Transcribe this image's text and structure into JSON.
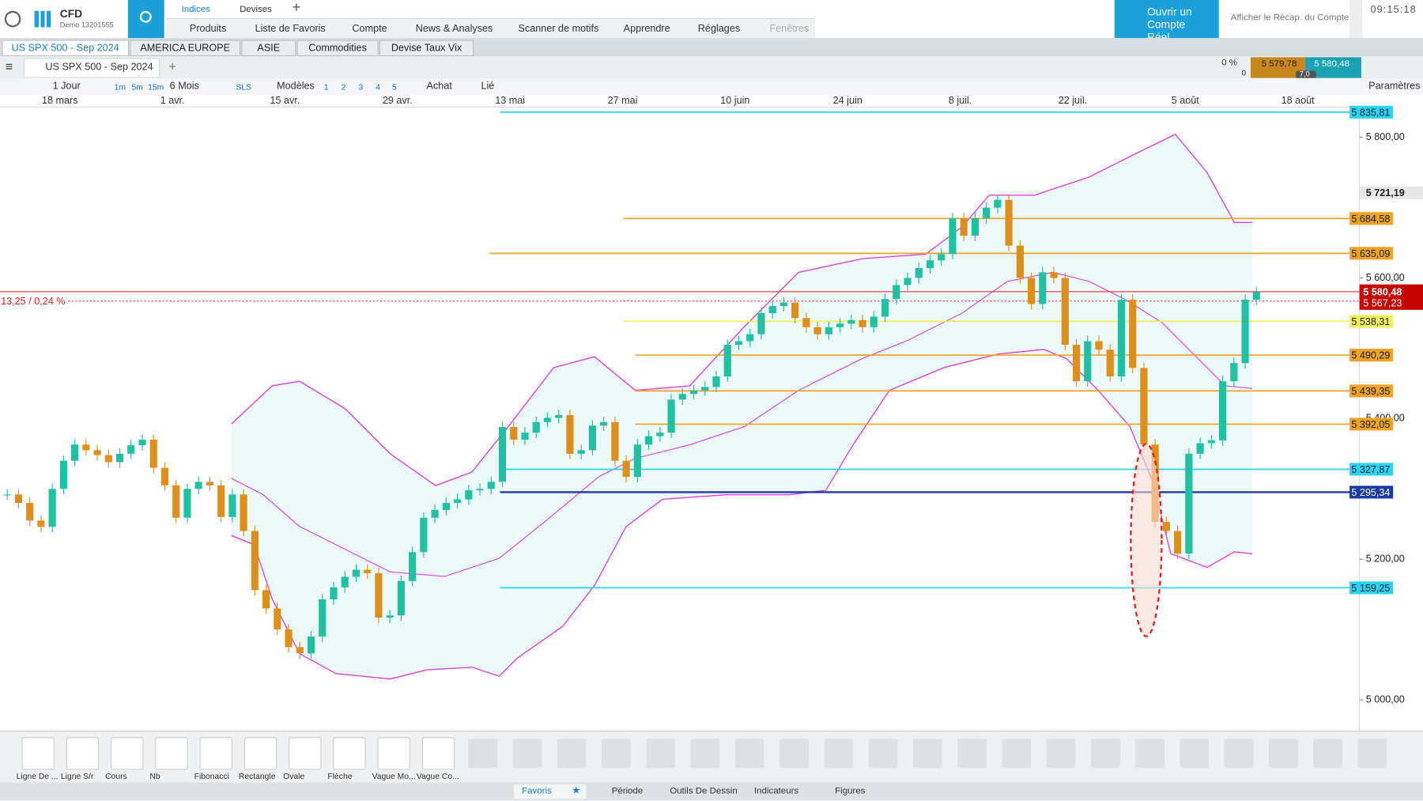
{
  "header": {
    "brand": "CFD",
    "account": "Demo 13201555",
    "tabs": [
      "Indices",
      "Devises"
    ],
    "menu": [
      "Produits",
      "Liste de Favoris",
      "Compte",
      "News & Analyses",
      "Scanner de motifs",
      "Apprendre",
      "Réglages",
      "Fenêtres"
    ],
    "cta": "Ouvrir un Compte Réel",
    "summary": "Afficher le Récap. du Compte",
    "time": "09:15:18"
  },
  "watchlists": [
    "US SPX 500 - Sep 2024",
    "AMERICA EUROPE",
    "ASIE",
    "Commodities",
    "Devise Taux Vix"
  ],
  "chart_toolbar": {
    "instrument": "US SPX 500 - Sep 2024",
    "change_pct": "0 %",
    "change": "0",
    "bid": "5 579,78",
    "spread": "7,0",
    "ask": "5 580,48",
    "interval": "1 Jour",
    "intervals": [
      "1m",
      "5m",
      "15m"
    ],
    "range": "6 Mois",
    "sls": "SLS",
    "templates": "Modèles",
    "layouts": [
      "1",
      "2",
      "3",
      "4",
      "5"
    ],
    "buy": "Achat",
    "link": "Lié",
    "settings": "Paramètres"
  },
  "chart_data": {
    "type": "candlestick",
    "change_label": "13,25 / 0,24 %",
    "x_labels": [
      "18 mars",
      "1 avr.",
      "15 avr.",
      "29 avr.",
      "13 mai",
      "27 mai",
      "10 juin",
      "24 juin",
      "8 juil.",
      "22 juil.",
      "5 août",
      "18 août"
    ],
    "closes": [
      5292,
      5280,
      5255,
      5246,
      5300,
      5340,
      5363,
      5355,
      5348,
      5338,
      5350,
      5362,
      5370,
      5330,
      5305,
      5259,
      5300,
      5310,
      5305,
      5260,
      5292,
      5240,
      5156,
      5130,
      5100,
      5075,
      5066,
      5090,
      5143,
      5160,
      5175,
      5185,
      5180,
      5117,
      5120,
      5169,
      5210,
      5259,
      5270,
      5280,
      5285,
      5298,
      5300,
      5310,
      5388,
      5370,
      5380,
      5395,
      5401,
      5405,
      5350,
      5355,
      5390,
      5395,
      5340,
      5317,
      5363,
      5375,
      5380,
      5427,
      5435,
      5440,
      5445,
      5460,
      5505,
      5510,
      5520,
      5550,
      5560,
      5565,
      5543,
      5530,
      5520,
      5530,
      5535,
      5540,
      5530,
      5545,
      5570,
      5590,
      5600,
      5614,
      5625,
      5634,
      5685,
      5660,
      5685,
      5700,
      5711,
      5646,
      5600,
      5563,
      5608,
      5600,
      5505,
      5453,
      5510,
      5498,
      5460,
      5569,
      5472,
      5363,
      5253,
      5240,
      5208,
      5350,
      5365,
      5369,
      5453,
      5479,
      5569,
      5580
    ],
    "up_color": "#22bfa3",
    "down_color": "#dc8f1c",
    "ylim": [
      4956,
      5843
    ],
    "yticks": [
      {
        "value": 5000,
        "label": "5 000,00"
      },
      {
        "value": 5200,
        "label": "5 200,00"
      },
      {
        "value": 5400,
        "label": "5 400,00"
      },
      {
        "value": 5600,
        "label": "5 600,00"
      },
      {
        "value": 5800,
        "label": "5 800,00"
      }
    ],
    "levels": [
      {
        "value": 5835.81,
        "label": "5 835,81",
        "color": "#2ad4ee"
      },
      {
        "value": 5684.58,
        "label": "5 684,58",
        "color": "#f0a224"
      },
      {
        "value": 5635.09,
        "label": "5 635,09",
        "color": "#f0a224"
      },
      {
        "value": 5538.31,
        "label": "5 538,31",
        "color": "#f4f05a"
      },
      {
        "value": 5490.29,
        "label": "5 490,29",
        "color": "#f0a224"
      },
      {
        "value": 5439.35,
        "label": "5 439,35",
        "color": "#f0a224"
      },
      {
        "value": 5392.05,
        "label": "5 392,05",
        "color": "#f0a224"
      },
      {
        "value": 5327.87,
        "label": "5 327,87",
        "color": "#2ad4ee"
      },
      {
        "value": 5295.34,
        "label": "5 295,34",
        "color": "#1c3aa6"
      },
      {
        "value": 5159.25,
        "label": "5 159,25",
        "color": "#2ad4ee"
      }
    ],
    "price": {
      "value": 5580.48,
      "label": "5 580,48"
    },
    "price2": {
      "value": 5567.23,
      "label": "5 567,23"
    },
    "marker": {
      "value": 5721.19,
      "label": "5 721,19"
    }
  },
  "drawing_tools": [
    "Ligne De ...",
    "Ligne S/r",
    "Cours",
    "Nb",
    "Fibonacci",
    "Rectangle",
    "Ovale",
    "Flèche",
    "Vague Mo...",
    "Vague Co..."
  ],
  "footer_tabs": [
    "Favoris",
    "Période",
    "Outils De Dessin",
    "Indicateurs",
    "Figures"
  ]
}
